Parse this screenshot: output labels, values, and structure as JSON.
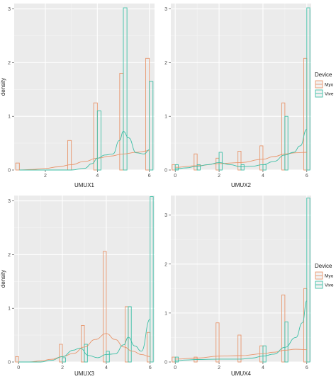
{
  "chart_data": [
    {
      "type": "bar",
      "subtype": "histogram-with-density",
      "xlabel": "UMUX1",
      "ylabel": "density",
      "xlim": [
        0.8,
        6.2
      ],
      "ylim": [
        0,
        3.1
      ],
      "xticks": [
        2,
        4,
        6
      ],
      "yticks": [
        0,
        1,
        2,
        3
      ],
      "legend": false,
      "series": [
        {
          "name": "Myo",
          "color": "#E8956B",
          "bars": [
            {
              "x": 1,
              "y": 0.13
            },
            {
              "x": 3,
              "y": 0.55
            },
            {
              "x": 4,
              "y": 1.25
            },
            {
              "x": 5,
              "y": 1.8
            },
            {
              "x": 6,
              "y": 2.08
            }
          ],
          "density": [
            [
              1,
              0.0
            ],
            [
              1.5,
              0.01
            ],
            [
              2,
              0.03
            ],
            [
              2.5,
              0.06
            ],
            [
              3,
              0.1
            ],
            [
              3.5,
              0.16
            ],
            [
              4,
              0.22
            ],
            [
              4.5,
              0.26
            ],
            [
              5,
              0.3
            ],
            [
              5.5,
              0.33
            ],
            [
              6,
              0.36
            ]
          ]
        },
        {
          "name": "Vive",
          "color": "#3CBFA6",
          "bars": [
            {
              "x": 4,
              "y": 1.1
            },
            {
              "x": 5,
              "y": 3.02
            },
            {
              "x": 6,
              "y": 1.65
            }
          ],
          "density": [
            [
              1,
              0.0
            ],
            [
              2,
              0.0
            ],
            [
              3,
              0.0
            ],
            [
              3.5,
              0.03
            ],
            [
              3.8,
              0.12
            ],
            [
              4,
              0.22
            ],
            [
              4.3,
              0.28
            ],
            [
              4.6,
              0.3
            ],
            [
              4.85,
              0.55
            ],
            [
              5,
              0.72
            ],
            [
              5.2,
              0.6
            ],
            [
              5.5,
              0.32
            ],
            [
              5.8,
              0.3
            ],
            [
              6,
              0.38
            ]
          ]
        }
      ]
    },
    {
      "type": "bar",
      "subtype": "histogram-with-density",
      "xlabel": "UMUX2",
      "ylabel": "",
      "xlim": [
        -0.2,
        6.2
      ],
      "ylim": [
        0,
        3.1
      ],
      "xticks": [
        0,
        2,
        4,
        6
      ],
      "yticks": [
        0,
        1,
        2,
        3
      ],
      "legend": true,
      "series": [
        {
          "name": "Myo",
          "color": "#E8956B",
          "bars": [
            {
              "x": 0,
              "y": 0.1
            },
            {
              "x": 1,
              "y": 0.3
            },
            {
              "x": 2,
              "y": 0.22
            },
            {
              "x": 3,
              "y": 0.35
            },
            {
              "x": 4,
              "y": 0.45
            },
            {
              "x": 5,
              "y": 1.25
            },
            {
              "x": 6,
              "y": 2.08
            }
          ],
          "density": [
            [
              0,
              0.05
            ],
            [
              1,
              0.08
            ],
            [
              2,
              0.12
            ],
            [
              3,
              0.14
            ],
            [
              4,
              0.2
            ],
            [
              4.5,
              0.25
            ],
            [
              5,
              0.3
            ],
            [
              5.5,
              0.32
            ],
            [
              6,
              0.33
            ]
          ]
        },
        {
          "name": "Vive",
          "color": "#3CBFA6",
          "bars": [
            {
              "x": 0,
              "y": 0.1
            },
            {
              "x": 1,
              "y": 0.1
            },
            {
              "x": 2,
              "y": 0.33
            },
            {
              "x": 3,
              "y": 0.1
            },
            {
              "x": 4,
              "y": 0.1
            },
            {
              "x": 5,
              "y": 1.0
            },
            {
              "x": 6,
              "y": 3.02
            }
          ],
          "density": [
            [
              0,
              0.02
            ],
            [
              0.5,
              0.04
            ],
            [
              1,
              0.07
            ],
            [
              1.5,
              0.1
            ],
            [
              2,
              0.14
            ],
            [
              2.5,
              0.1
            ],
            [
              3,
              0.06
            ],
            [
              3.5,
              0.07
            ],
            [
              4,
              0.1
            ],
            [
              4.5,
              0.16
            ],
            [
              5,
              0.28
            ],
            [
              5.4,
              0.33
            ],
            [
              5.7,
              0.45
            ],
            [
              6,
              0.76
            ]
          ]
        }
      ]
    },
    {
      "type": "bar",
      "subtype": "histogram-with-density",
      "xlabel": "UMUX3",
      "ylabel": "density",
      "xlim": [
        -0.2,
        6.2
      ],
      "ylim": [
        0,
        3.1
      ],
      "xticks": [
        0,
        2,
        4,
        6
      ],
      "yticks": [
        0,
        1,
        2,
        3
      ],
      "legend": false,
      "series": [
        {
          "name": "Myo",
          "color": "#E8956B",
          "bars": [
            {
              "x": 0,
              "y": 0.1
            },
            {
              "x": 2,
              "y": 0.33
            },
            {
              "x": 3,
              "y": 0.68
            },
            {
              "x": 4,
              "y": 2.06
            },
            {
              "x": 5,
              "y": 1.03
            },
            {
              "x": 6,
              "y": 0.55
            }
          ],
          "density": [
            [
              0,
              0.0
            ],
            [
              0.5,
              0.0
            ],
            [
              1,
              0.02
            ],
            [
              1.5,
              0.05
            ],
            [
              2,
              0.1
            ],
            [
              2.5,
              0.16
            ],
            [
              3,
              0.28
            ],
            [
              3.5,
              0.42
            ],
            [
              4,
              0.53
            ],
            [
              4.4,
              0.42
            ],
            [
              4.8,
              0.28
            ],
            [
              5.2,
              0.2
            ],
            [
              5.6,
              0.14
            ],
            [
              6,
              0.1
            ]
          ]
        },
        {
          "name": "Vive",
          "color": "#3CBFA6",
          "bars": [
            {
              "x": 2,
              "y": 0.08
            },
            {
              "x": 3,
              "y": 0.33
            },
            {
              "x": 4,
              "y": 0.2
            },
            {
              "x": 5,
              "y": 1.03
            },
            {
              "x": 6,
              "y": 3.08
            }
          ],
          "density": [
            [
              0,
              0.0
            ],
            [
              1,
              0.0
            ],
            [
              1.5,
              0.03
            ],
            [
              2,
              0.1
            ],
            [
              2.5,
              0.22
            ],
            [
              2.8,
              0.26
            ],
            [
              3.2,
              0.12
            ],
            [
              3.6,
              0.08
            ],
            [
              4,
              0.14
            ],
            [
              4.4,
              0.15
            ],
            [
              4.8,
              0.32
            ],
            [
              5,
              0.46
            ],
            [
              5.3,
              0.3
            ],
            [
              5.6,
              0.2
            ],
            [
              6,
              0.8
            ]
          ]
        }
      ]
    },
    {
      "type": "bar",
      "subtype": "histogram-with-density",
      "xlabel": "UMUX4",
      "ylabel": "",
      "xlim": [
        -0.2,
        6.2
      ],
      "ylim": [
        0,
        3.4
      ],
      "xticks": [
        0,
        2,
        4,
        6
      ],
      "yticks": [
        0,
        1,
        2,
        3
      ],
      "legend": true,
      "series": [
        {
          "name": "Myo",
          "color": "#E8956B",
          "bars": [
            {
              "x": 0,
              "y": 0.1
            },
            {
              "x": 1,
              "y": 0.1
            },
            {
              "x": 2,
              "y": 0.8
            },
            {
              "x": 3,
              "y": 0.55
            },
            {
              "x": 4,
              "y": 0.33
            },
            {
              "x": 5,
              "y": 1.37
            },
            {
              "x": 6,
              "y": 1.5
            }
          ],
          "density": [
            [
              0,
              0.06
            ],
            [
              1,
              0.08
            ],
            [
              2,
              0.12
            ],
            [
              3,
              0.13
            ],
            [
              4,
              0.17
            ],
            [
              4.5,
              0.2
            ],
            [
              5,
              0.24
            ],
            [
              5.5,
              0.26
            ],
            [
              6,
              0.25
            ]
          ]
        },
        {
          "name": "Vive",
          "color": "#3CBFA6",
          "bars": [
            {
              "x": 0,
              "y": 0.1
            },
            {
              "x": 4,
              "y": 0.33
            },
            {
              "x": 5,
              "y": 0.82
            },
            {
              "x": 6,
              "y": 3.35
            }
          ],
          "density": [
            [
              0,
              0.02
            ],
            [
              0.5,
              0.04
            ],
            [
              1,
              0.05
            ],
            [
              2,
              0.06
            ],
            [
              3,
              0.06
            ],
            [
              3.5,
              0.08
            ],
            [
              4,
              0.12
            ],
            [
              4.5,
              0.16
            ],
            [
              5,
              0.3
            ],
            [
              5.5,
              0.5
            ],
            [
              5.8,
              0.8
            ],
            [
              6,
              1.25
            ]
          ]
        }
      ]
    }
  ],
  "legend": {
    "title": "Device",
    "entries": [
      "Myo",
      "Vive"
    ]
  }
}
